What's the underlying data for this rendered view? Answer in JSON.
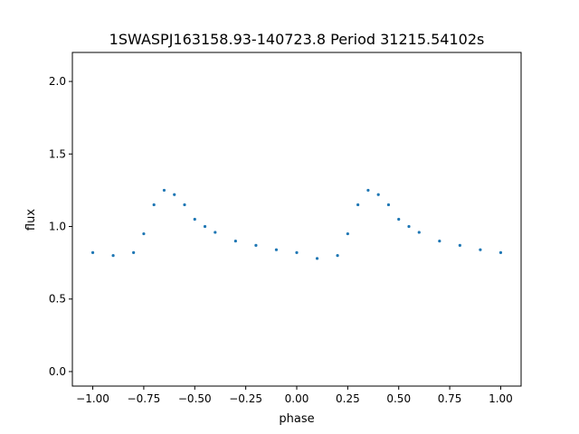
{
  "chart_data": {
    "type": "scatter",
    "title": "1SWASPJ163158.93-140723.8 Period 31215.54102s",
    "xlabel": "phase",
    "ylabel": "flux",
    "xlim": [
      -1.1,
      1.1
    ],
    "ylim": [
      -0.1,
      2.2
    ],
    "xticks": [
      -1.0,
      -0.75,
      -0.5,
      -0.25,
      0.0,
      0.25,
      0.5,
      0.75,
      1.0
    ],
    "xtick_labels": [
      "−1.00",
      "−0.75",
      "−0.50",
      "−0.25",
      "0.00",
      "0.25",
      "0.50",
      "0.75",
      "1.00"
    ],
    "yticks": [
      0.0,
      0.5,
      1.0,
      1.5,
      2.0
    ],
    "ytick_labels": [
      "0.0",
      "0.5",
      "1.0",
      "1.5",
      "2.0"
    ],
    "grid": false,
    "marker_color": "#1f77b4",
    "series": [
      {
        "x": [
          -1.0,
          -0.9,
          -0.8,
          -0.75,
          -0.7,
          -0.65,
          -0.6,
          -0.55,
          -0.5,
          -0.45,
          -0.4,
          -0.3,
          -0.2,
          -0.1,
          0.0,
          0.1,
          0.2,
          0.25,
          0.3,
          0.35,
          0.4,
          0.45,
          0.5,
          0.55,
          0.6,
          0.7,
          0.8,
          0.9,
          1.0
        ],
        "y": [
          0.82,
          0.8,
          0.82,
          0.95,
          1.15,
          1.25,
          1.22,
          1.15,
          1.05,
          1.0,
          0.96,
          0.9,
          0.87,
          0.84,
          0.82,
          0.78,
          0.8,
          0.95,
          1.15,
          1.25,
          1.22,
          1.15,
          1.05,
          1.0,
          0.96,
          0.9,
          0.87,
          0.84,
          0.82
        ]
      }
    ]
  }
}
